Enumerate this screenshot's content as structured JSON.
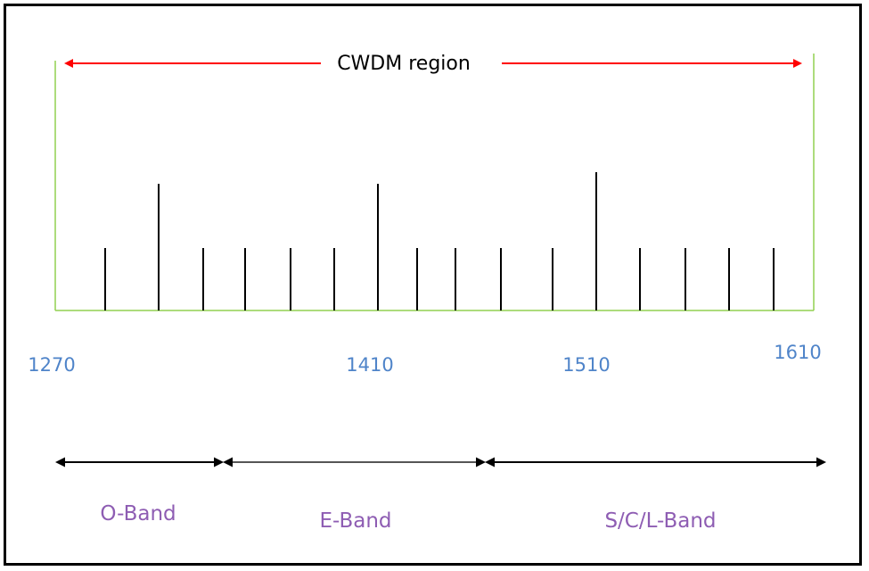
{
  "region": {
    "label": "CWDM region",
    "arrow_color": "#ff0000"
  },
  "axis": {
    "line_color": "#92d050",
    "start_nm": 1270,
    "end_nm": 1610,
    "tick_labels": [
      "1270",
      "1410",
      "1510",
      "1610"
    ]
  },
  "channels": [
    {
      "tall": false
    },
    {
      "tall": true
    },
    {
      "tall": false
    },
    {
      "tall": false
    },
    {
      "tall": false
    },
    {
      "tall": false
    },
    {
      "tall": true
    },
    {
      "tall": false
    },
    {
      "tall": false
    },
    {
      "tall": false
    },
    {
      "tall": false
    },
    {
      "tall": true
    },
    {
      "tall": false
    },
    {
      "tall": false
    },
    {
      "tall": false
    },
    {
      "tall": false
    }
  ],
  "bands": [
    {
      "label": "O-Band"
    },
    {
      "label": "E-Band"
    },
    {
      "label": "S/C/L-Band"
    }
  ],
  "colors": {
    "band_text": "#8e5db3",
    "wavelength_text": "#4f84c9",
    "band_arrow": "#000000"
  }
}
